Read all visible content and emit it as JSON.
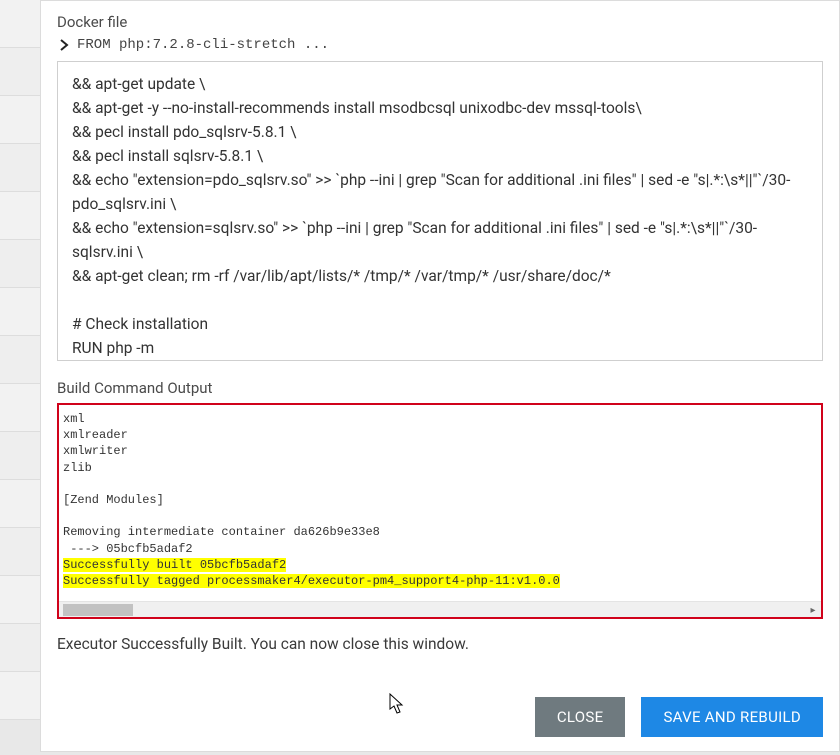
{
  "labels": {
    "docker_file": "Docker file",
    "build_output": "Build Command Output",
    "success": "Executor Successfully Built. You can now close this window."
  },
  "from_line": "FROM php:7.2.8-cli-stretch ...",
  "dockerfile_body": "&& apt-get update \\\n&& apt-get -y --no-install-recommends install msodbcsql unixodbc-dev mssql-tools\\\n&& pecl install pdo_sqlsrv-5.8.1 \\\n&& pecl install sqlsrv-5.8.1 \\\n&& echo \"extension=pdo_sqlsrv.so\" >> `php --ini | grep \"Scan for additional .ini files\" | sed -e \"s|.*:\\s*||\"`/30-pdo_sqlsrv.ini \\\n&& echo \"extension=sqlsrv.so\" >> `php --ini | grep \"Scan for additional .ini files\" | sed -e \"s|.*:\\s*||\"`/30-sqlsrv.ini \\\n&& apt-get clean; rm -rf /var/lib/apt/lists/* /tmp/* /var/tmp/* /usr/share/doc/*\n\n# Check installation\nRUN php -m",
  "output": {
    "plain_lines": [
      "xml",
      "xmlreader",
      "xmlwriter",
      "zlib",
      "",
      "[Zend Modules]",
      "",
      "Removing intermediate container da626b9e33e8",
      " ---> 05bcfb5adaf2"
    ],
    "highlight_lines": [
      "Successfully built 05bcfb5adaf2",
      "Successfully tagged processmaker4/executor-pm4_support4-php-11:v1.0.0"
    ],
    "highlight_color": "#ffff00",
    "border_color": "#d0021b"
  },
  "buttons": {
    "close": "CLOSE",
    "save": "SAVE AND REBUILD"
  },
  "colors": {
    "btn_close_bg": "#6f7a7f",
    "btn_save_bg": "#1e88e5",
    "btn_fg": "#ffffff",
    "text": "#333333",
    "label": "#4a4a4a"
  }
}
